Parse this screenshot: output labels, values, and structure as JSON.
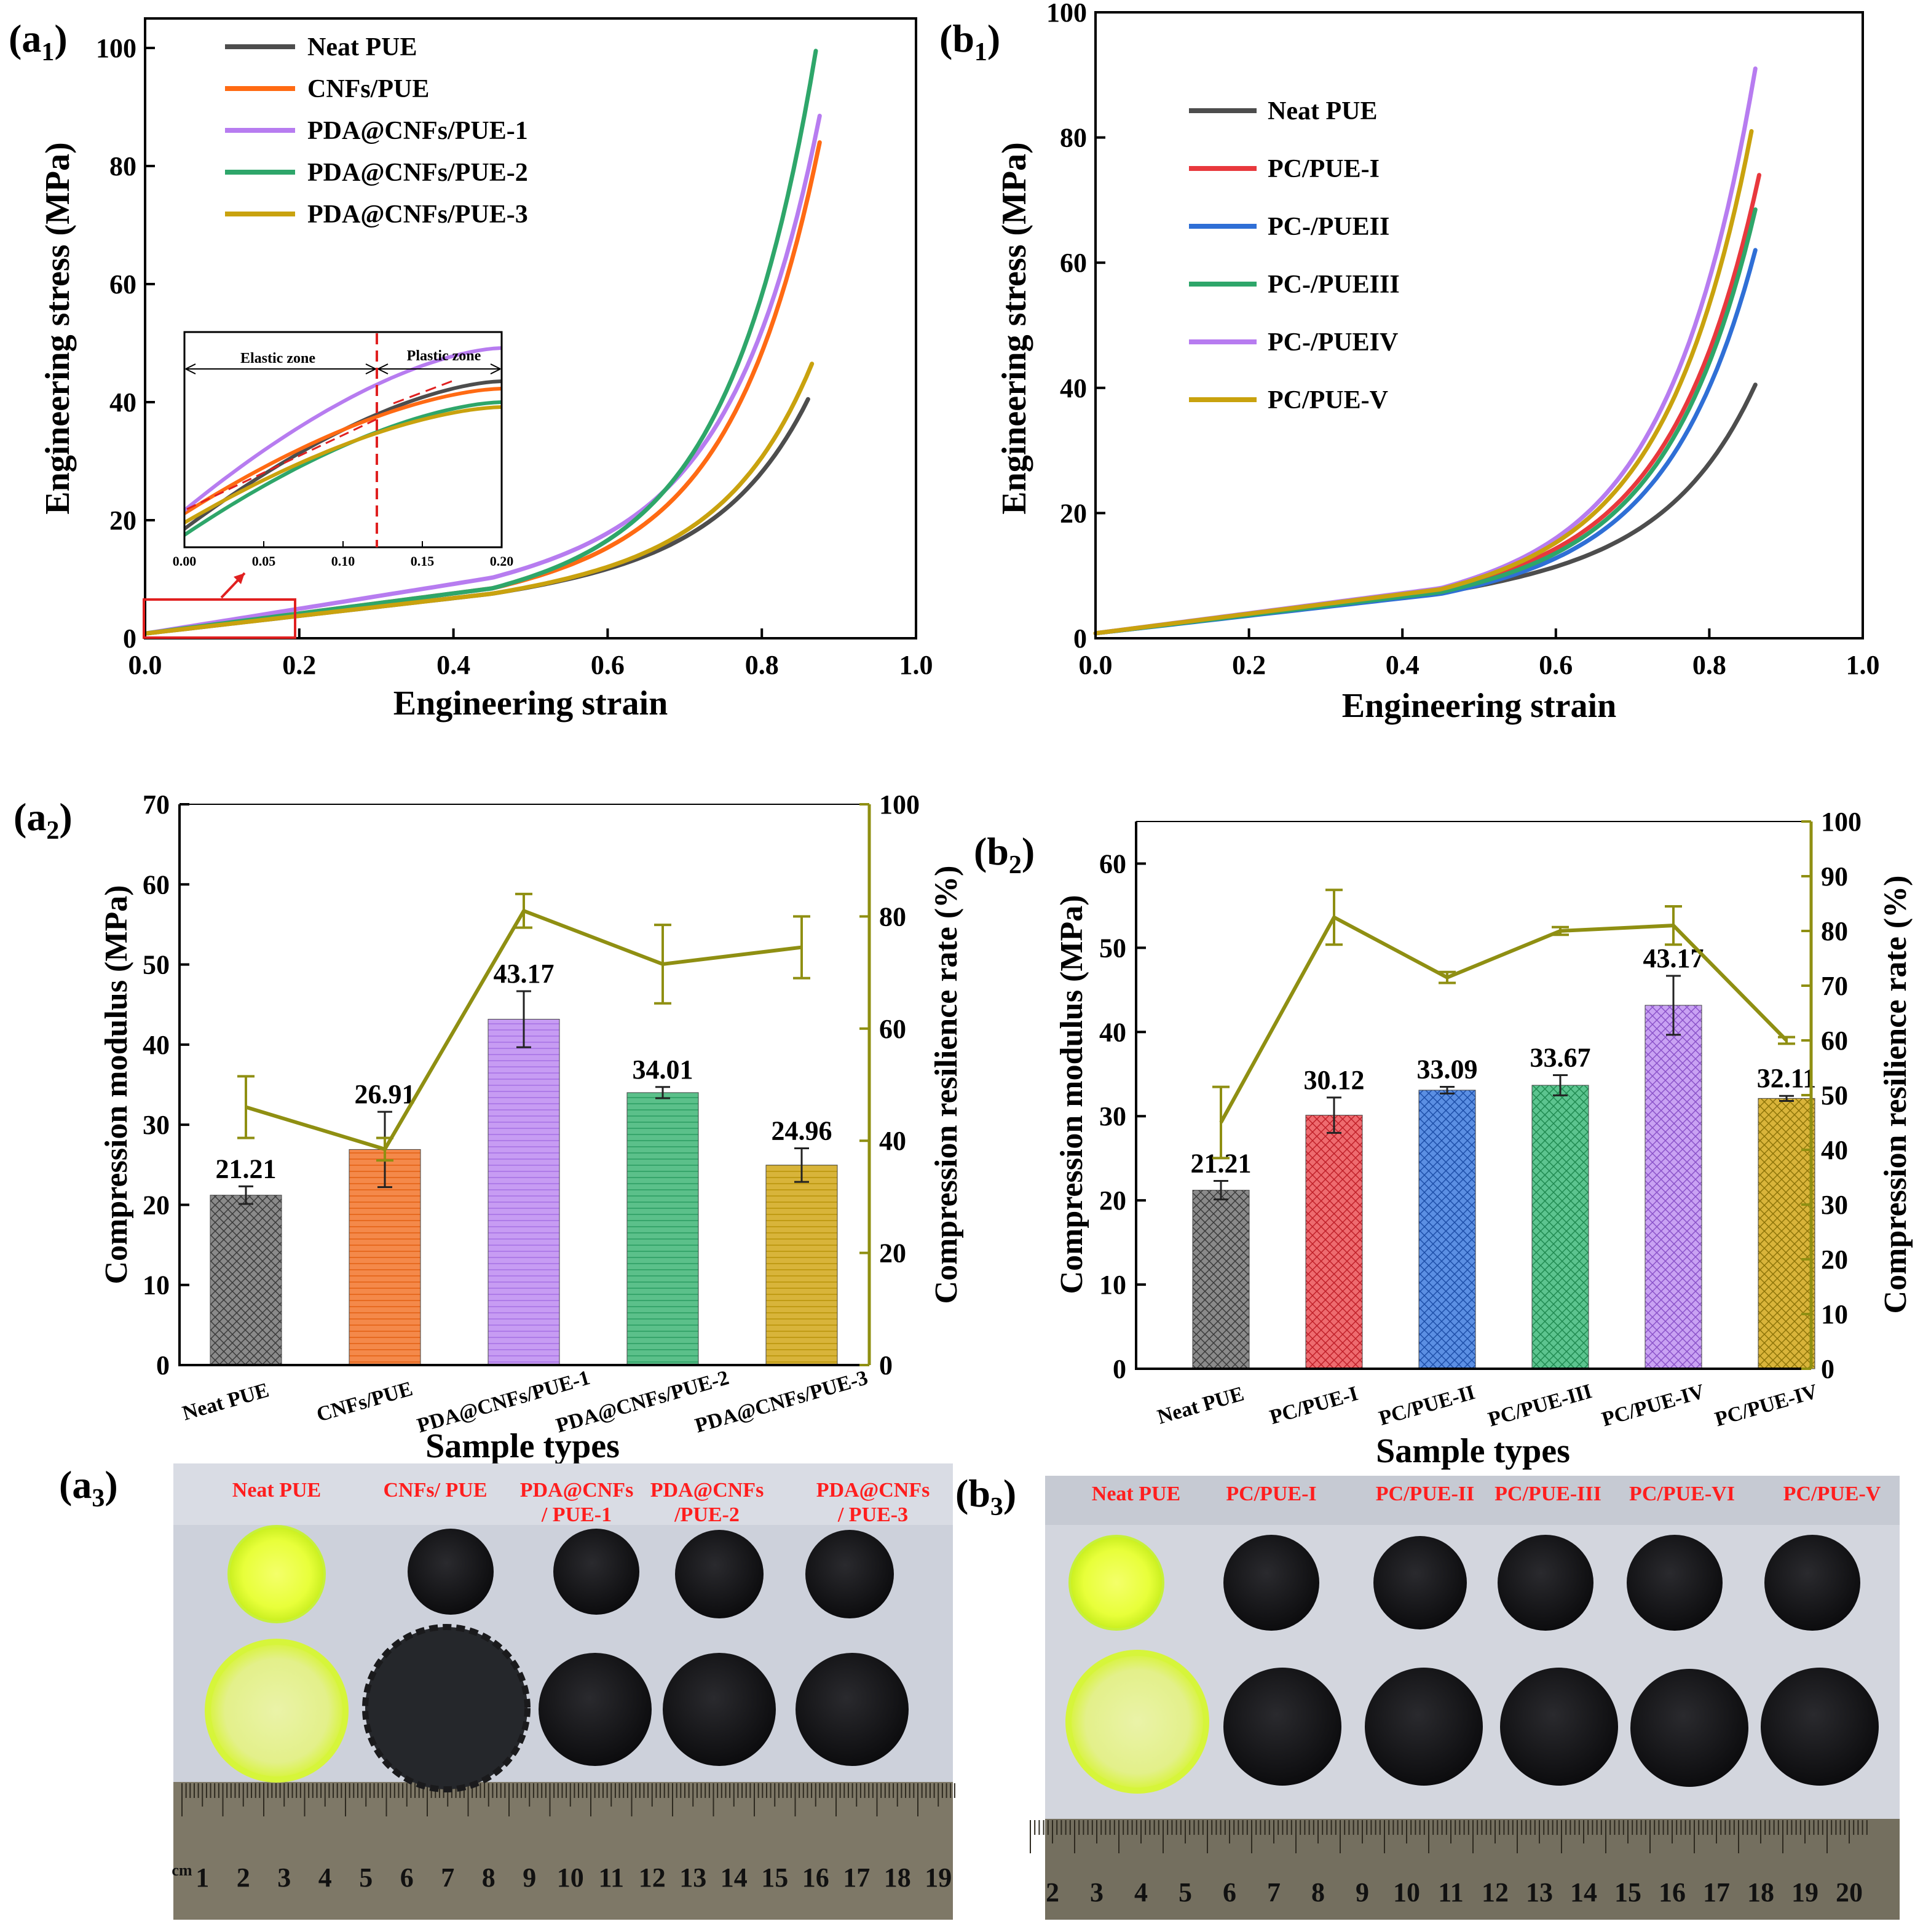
{
  "colors": {
    "gray": "#4d4d4d",
    "orange": "#ff6a13",
    "purple": "#b77cf0",
    "green": "#2ea66a",
    "gold": "#c9a20e",
    "red": "#e8383d",
    "blue": "#2f6fd6",
    "olive": "#8f8f12",
    "photo_label_red": "#ff1e1e",
    "photo_bg": "#cfd3dc",
    "ruler": "#7d7766"
  },
  "panels": {
    "a1": {
      "label_main": "(a",
      "label_sub": "1",
      "label_close": ")"
    },
    "b1": {
      "label_main": "(b",
      "label_sub": "1",
      "label_close": ")"
    },
    "a2": {
      "label_main": "(a",
      "label_sub": "2",
      "label_close": ")"
    },
    "b2": {
      "label_main": "(b",
      "label_sub": "2",
      "label_close": ")"
    },
    "a3": {
      "label_main": "(a",
      "label_sub": "3",
      "label_close": ")"
    },
    "b3": {
      "label_main": "(b",
      "label_sub": "3",
      "label_close": ")"
    }
  },
  "chart_data": [
    {
      "id": "a1",
      "type": "line",
      "xlabel": "Engineering strain",
      "ylabel": "Engineering stress (MPa)",
      "xlim": [
        0,
        1.0
      ],
      "ylim": [
        0,
        105
      ],
      "xticks": [
        0.0,
        0.2,
        0.4,
        0.6,
        0.8,
        1.0
      ],
      "xtick_labels": [
        "0.0",
        "0.2",
        "0.4",
        "0.6",
        "0.8",
        "1.0"
      ],
      "yticks": [
        0,
        20,
        40,
        60,
        80,
        100
      ],
      "ytick_labels": [
        "0",
        "20",
        "40",
        "60",
        "80",
        "100"
      ],
      "series": [
        {
          "name": "Neat PUE",
          "color": "gray",
          "end_x": 0.86,
          "end_y": 40.5,
          "mid_y": 7.5
        },
        {
          "name": "CNFs/PUE",
          "color": "orange",
          "end_x": 0.875,
          "end_y": 84,
          "mid_y": 8.5
        },
        {
          "name": "PDA@CNFs/PUE-1",
          "color": "purple",
          "end_x": 0.875,
          "end_y": 88.5,
          "mid_y": 10.5
        },
        {
          "name": "PDA@CNFs/PUE-2",
          "color": "green",
          "end_x": 0.87,
          "end_y": 99.5,
          "mid_y": 8.5
        },
        {
          "name": "PDA@CNFs/PUE-3",
          "color": "gold",
          "end_x": 0.865,
          "end_y": 46.5,
          "mid_y": 7.5
        }
      ],
      "inset": {
        "xlim": [
          0.0,
          0.2
        ],
        "xticks": [
          0.0,
          0.05,
          0.1,
          0.15,
          0.2
        ],
        "xtick_labels": [
          "0.00",
          "0.05",
          "0.10",
          "0.15",
          "0.20"
        ],
        "divider_x": 0.12,
        "elastic_label": "Elastic zone",
        "plastic_label": "Plastic zone"
      }
    },
    {
      "id": "b1",
      "type": "line",
      "xlabel": "Engineering strain",
      "ylabel": "Engineering stress (MPa)",
      "xlim": [
        0,
        1.0
      ],
      "ylim": [
        0,
        100
      ],
      "xticks": [
        0.0,
        0.2,
        0.4,
        0.6,
        0.8,
        1.0
      ],
      "xtick_labels": [
        "0.0",
        "0.2",
        "0.4",
        "0.6",
        "0.8",
        "1.0"
      ],
      "yticks": [
        0,
        20,
        40,
        60,
        80,
        100
      ],
      "ytick_labels": [
        "0",
        "20",
        "40",
        "60",
        "80",
        "100"
      ],
      "series": [
        {
          "name": "Neat PUE",
          "color": "gray",
          "end_x": 0.86,
          "end_y": 40.5,
          "mid_y": 7.2
        },
        {
          "name": "PC/PUE-I",
          "color": "red",
          "end_x": 0.865,
          "end_y": 74,
          "mid_y": 7.8
        },
        {
          "name": "PC-/PUEII",
          "color": "blue",
          "end_x": 0.86,
          "end_y": 62,
          "mid_y": 7.0
        },
        {
          "name": "PC-/PUEIII",
          "color": "green",
          "end_x": 0.86,
          "end_y": 68.5,
          "mid_y": 7.3
        },
        {
          "name": "PC-/PUEIV",
          "color": "purple",
          "end_x": 0.86,
          "end_y": 91,
          "mid_y": 8.0
        },
        {
          "name": "PC/PUE-V",
          "color": "gold",
          "end_x": 0.855,
          "end_y": 81,
          "mid_y": 7.8
        }
      ]
    },
    {
      "id": "a2",
      "type": "bar",
      "xlabel": "Sample types",
      "ylabel": "Compression modulus (MPa)",
      "ylabel_right": "Compression resilience rate (%)",
      "ylim": [
        0,
        70
      ],
      "ylim_right": [
        0,
        100
      ],
      "yticks": [
        0,
        10,
        20,
        30,
        40,
        50,
        60,
        70
      ],
      "ytick_labels": [
        "0",
        "10",
        "20",
        "30",
        "40",
        "50",
        "60",
        "70"
      ],
      "yticks_right": [
        0,
        20,
        40,
        60,
        80,
        100
      ],
      "ytick_labels_right": [
        "0",
        "20",
        "40",
        "60",
        "80",
        "100"
      ],
      "categories": [
        "Neat PUE",
        "CNFs/PUE",
        "PDA@CNFs/PUE-1",
        "PDA@CNFs/PUE-2",
        "PDA@CNFs/PUE-3"
      ],
      "bar_colors": [
        "gray",
        "orange",
        "purple",
        "green",
        "gold"
      ],
      "values": [
        21.21,
        26.91,
        43.17,
        34.01,
        24.96
      ],
      "value_labels": [
        "21.21",
        "26.91",
        "43.17",
        "34.01",
        "24.96"
      ],
      "errors": [
        1.1,
        4.7,
        3.5,
        0.7,
        2.1
      ],
      "resilience": [
        46,
        38.5,
        81,
        71.5,
        74.5
      ],
      "resilience_errors": [
        5.5,
        2,
        3,
        7,
        5.5
      ]
    },
    {
      "id": "b2",
      "type": "bar",
      "xlabel": "Sample types",
      "ylabel": "Compression modulus (MPa)",
      "ylabel_right": "Compression resilience rate (%)",
      "ylim": [
        0,
        65
      ],
      "ylim_right": [
        0,
        100
      ],
      "yticks": [
        0,
        10,
        20,
        30,
        40,
        50,
        60
      ],
      "ytick_labels": [
        "0",
        "10",
        "20",
        "30",
        "40",
        "50",
        "60"
      ],
      "yticks_right": [
        0,
        10,
        20,
        30,
        40,
        50,
        60,
        70,
        80,
        90,
        100
      ],
      "ytick_labels_right": [
        "0",
        "10",
        "20",
        "30",
        "40",
        "50",
        "60",
        "70",
        "80",
        "90",
        "100"
      ],
      "categories": [
        "Neat PUE",
        "PC/PUE-I",
        "PC/PUE-II",
        "PC/PUE-III",
        "PC/PUE-IV",
        "PC/PUE-IV"
      ],
      "bar_colors": [
        "gray",
        "red",
        "blue",
        "green",
        "purple",
        "gold"
      ],
      "values": [
        21.21,
        30.12,
        33.09,
        33.67,
        43.17,
        32.11
      ],
      "value_labels": [
        "21.21",
        "30.12",
        "33.09",
        "33.67",
        "43.17",
        "32.11"
      ],
      "errors": [
        1.1,
        2.1,
        0.4,
        1.2,
        3.5,
        0.3
      ],
      "resilience": [
        45,
        82.5,
        71.5,
        80,
        81
      ],
      "resilience_errors": [
        6.5,
        5,
        1,
        0.7,
        3.5
      ],
      "resilience_last": 60,
      "resilience_last_error": 0.6
    }
  ],
  "photos": {
    "a3": {
      "labels": [
        "Neat PUE",
        "CNFs/ PUE",
        "PDA@CNFs|/ PUE-1",
        "PDA@CNFs|/PUE-2",
        "PDA@CNFs|/ PUE-3"
      ],
      "ruler_numbers": [
        "1",
        "2",
        "3",
        "4",
        "5",
        "6",
        "7",
        "8",
        "9",
        "10",
        "11",
        "12",
        "13",
        "14",
        "15",
        "16",
        "17",
        "18",
        "19"
      ],
      "ruler_unit": "cm"
    },
    "b3": {
      "labels": [
        "Neat PUE",
        "PC/PUE-I",
        "PC/PUE-II",
        "PC/PUE-III",
        "PC/PUE-VI",
        "PC/PUE-V"
      ],
      "ruler_numbers": [
        "2",
        "3",
        "4",
        "5",
        "6",
        "7",
        "8",
        "9",
        "10",
        "11",
        "12",
        "13",
        "14",
        "15",
        "16",
        "17",
        "18",
        "19",
        "20"
      ],
      "ruler_unit": "cm"
    }
  }
}
